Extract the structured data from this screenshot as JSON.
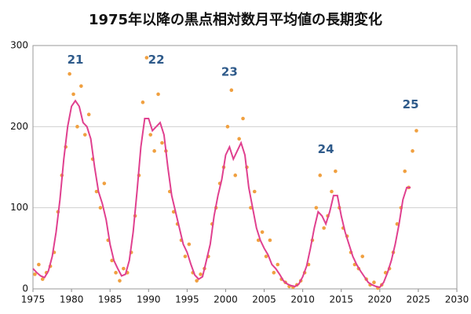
{
  "chart_data": {
    "type": "scatter-line",
    "title": "1975年以降の黒点相対数月平均値の長期変化",
    "xlim": [
      1975,
      2030
    ],
    "xticks": [
      1975,
      1980,
      1985,
      1990,
      1995,
      2000,
      2005,
      2010,
      2015,
      2020,
      2025,
      2030
    ],
    "ylim": [
      0,
      300
    ],
    "yticks": [
      0,
      100,
      200,
      300
    ],
    "grid": true,
    "series": [
      {
        "kind": "scatter",
        "color": "#f0a040",
        "x": [
          1975.25,
          1975.75,
          1976.25,
          1976.75,
          1977.25,
          1977.75,
          1978.25,
          1978.75,
          1979.25,
          1979.75,
          1980.25,
          1980.75,
          1981.25,
          1981.75,
          1982.25,
          1982.75,
          1983.25,
          1983.75,
          1984.25,
          1984.75,
          1985.25,
          1985.75,
          1986.25,
          1986.75,
          1987.25,
          1987.75,
          1988.25,
          1988.75,
          1989.25,
          1989.75,
          1990.25,
          1990.75,
          1991.25,
          1991.75,
          1992.25,
          1992.75,
          1993.25,
          1993.75,
          1994.25,
          1994.75,
          1995.25,
          1995.75,
          1996.25,
          1996.75,
          1997.25,
          1997.75,
          1998.25,
          1998.75,
          1999.25,
          1999.75,
          2000.25,
          2000.75,
          2001.25,
          2001.75,
          2002.25,
          2002.75,
          2003.25,
          2003.75,
          2004.25,
          2004.75,
          2005.25,
          2005.75,
          2006.25,
          2006.75,
          2007.25,
          2007.75,
          2008.25,
          2008.75,
          2009.25,
          2009.75,
          2010.25,
          2010.75,
          2011.25,
          2011.75,
          2012.25,
          2012.75,
          2013.25,
          2013.75,
          2014.25,
          2014.75,
          2015.25,
          2015.75,
          2016.25,
          2016.75,
          2017.25,
          2017.75,
          2018.25,
          2018.75,
          2019.25,
          2019.75,
          2020.25,
          2020.75,
          2021.25,
          2021.75,
          2022.25,
          2022.75,
          2023.25,
          2023.75,
          2024.25,
          2024.75
        ],
        "values": [
          18,
          30,
          12,
          20,
          28,
          45,
          95,
          140,
          175,
          265,
          240,
          200,
          250,
          190,
          215,
          160,
          120,
          100,
          130,
          60,
          35,
          20,
          10,
          25,
          20,
          45,
          90,
          140,
          230,
          285,
          190,
          170,
          240,
          180,
          170,
          120,
          95,
          80,
          60,
          40,
          55,
          20,
          10,
          18,
          25,
          40,
          80,
          100,
          130,
          150,
          200,
          245,
          140,
          185,
          210,
          150,
          100,
          120,
          60,
          70,
          40,
          60,
          20,
          30,
          12,
          8,
          3,
          2,
          5,
          10,
          20,
          30,
          60,
          100,
          140,
          75,
          90,
          120,
          145,
          100,
          75,
          65,
          45,
          30,
          25,
          40,
          12,
          5,
          8,
          1,
          5,
          20,
          25,
          45,
          80,
          100,
          145,
          125,
          170,
          195
        ]
      },
      {
        "kind": "line",
        "color": "#e0408f",
        "x": [
          1975.0,
          1975.5,
          1976.0,
          1976.5,
          1977.0,
          1977.5,
          1978.0,
          1978.5,
          1979.0,
          1979.5,
          1980.0,
          1980.5,
          1981.0,
          1981.5,
          1982.0,
          1982.5,
          1983.0,
          1983.5,
          1984.0,
          1984.5,
          1985.0,
          1985.5,
          1986.0,
          1986.5,
          1987.0,
          1987.5,
          1988.0,
          1988.5,
          1989.0,
          1989.5,
          1990.0,
          1990.5,
          1991.0,
          1991.5,
          1992.0,
          1992.5,
          1993.0,
          1993.5,
          1994.0,
          1994.5,
          1995.0,
          1995.5,
          1996.0,
          1996.5,
          1997.0,
          1997.5,
          1998.0,
          1998.5,
          1999.0,
          1999.5,
          2000.0,
          2000.5,
          2001.0,
          2001.5,
          2002.0,
          2002.5,
          2003.0,
          2003.5,
          2004.0,
          2004.5,
          2005.0,
          2005.5,
          2006.0,
          2006.5,
          2007.0,
          2007.5,
          2008.0,
          2008.5,
          2009.0,
          2009.5,
          2010.0,
          2010.5,
          2011.0,
          2011.5,
          2012.0,
          2012.5,
          2013.0,
          2013.5,
          2014.0,
          2014.5,
          2015.0,
          2015.5,
          2016.0,
          2016.5,
          2017.0,
          2017.5,
          2018.0,
          2018.5,
          2019.0,
          2019.5,
          2020.0,
          2020.5,
          2021.0,
          2021.5,
          2022.0,
          2022.5,
          2023.0,
          2023.5,
          2024.0
        ],
        "values": [
          25,
          20,
          16,
          14,
          22,
          40,
          70,
          110,
          160,
          200,
          225,
          232,
          225,
          205,
          200,
          185,
          150,
          120,
          105,
          85,
          55,
          35,
          25,
          16,
          18,
          35,
          70,
          120,
          175,
          210,
          210,
          195,
          200,
          205,
          190,
          150,
          115,
          95,
          75,
          55,
          45,
          30,
          17,
          12,
          15,
          35,
          55,
          90,
          115,
          135,
          165,
          175,
          160,
          170,
          180,
          165,
          125,
          100,
          75,
          60,
          50,
          42,
          30,
          25,
          18,
          10,
          6,
          4,
          3,
          6,
          15,
          28,
          50,
          75,
          95,
          90,
          80,
          95,
          115,
          115,
          90,
          70,
          55,
          40,
          30,
          22,
          15,
          8,
          5,
          3,
          2,
          8,
          20,
          35,
          55,
          80,
          110,
          125,
          125
        ]
      }
    ],
    "annotations": [
      {
        "label": "21",
        "x": 1980.5,
        "y": 282
      },
      {
        "label": "22",
        "x": 1991,
        "y": 282
      },
      {
        "label": "23",
        "x": 2000.5,
        "y": 267
      },
      {
        "label": "24",
        "x": 2013,
        "y": 172
      },
      {
        "label": "25",
        "x": 2024,
        "y": 227
      }
    ],
    "annotation_color": "#2e5a8a"
  }
}
